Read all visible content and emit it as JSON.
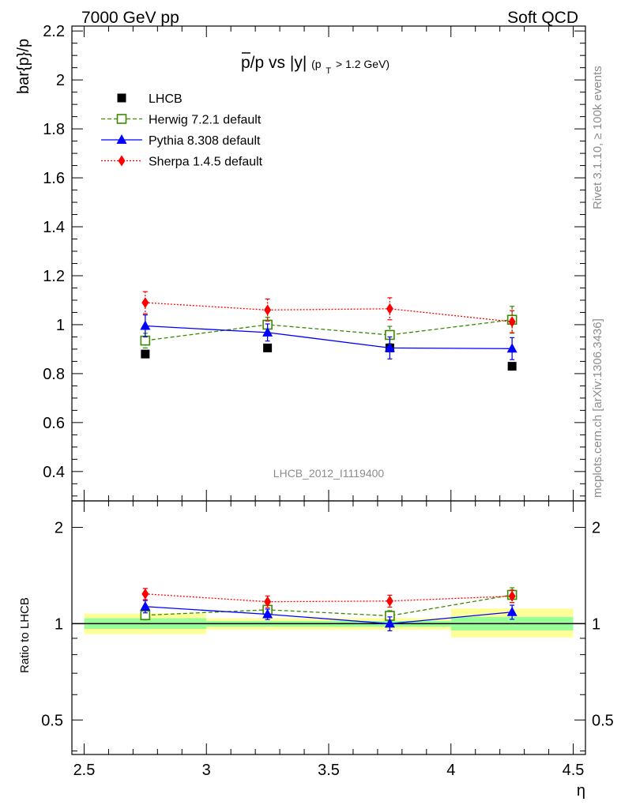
{
  "header": {
    "left": "7000 GeV pp",
    "right": "Soft QCD"
  },
  "side_text": {
    "rivet": "Rivet 3.1.10, ≥ 100k events",
    "mcplots": "mcplots.cern.ch [arXiv:1306.3436]"
  },
  "chart_data": [
    {
      "type": "scatter",
      "panel": "main",
      "title": "p̄/p vs |y| (pT > 1.2 GeV)",
      "title_main": "p/p vs |y|",
      "title_sub": "(p",
      "title_sub_index": "T",
      "title_sub_tail": " > 1.2 GeV)",
      "analysis_id": "LHCB_2012_I1119400",
      "xlabel": "η",
      "ylabel": "bar{p}/p",
      "xlim": [
        2.45,
        4.55
      ],
      "ylim": [
        0.28,
        2.22
      ],
      "yticks": [
        0.4,
        0.6,
        0.8,
        1.0,
        1.2,
        1.4,
        1.6,
        1.8,
        2.0,
        2.2
      ],
      "ytick_labels": [
        "0.4",
        "0.6",
        "0.8",
        "1",
        "1.2",
        "1.4",
        "1.6",
        "1.8",
        "2",
        "2.2"
      ],
      "legend_position": "top-left",
      "series": [
        {
          "name": "LHCB",
          "color": "#000000",
          "marker": "square-filled",
          "line": "none",
          "x": [
            2.75,
            3.25,
            3.75,
            4.25
          ],
          "y": [
            0.88,
            0.905,
            0.905,
            0.83
          ],
          "err": [
            0.01,
            0.01,
            0.01,
            0.01
          ]
        },
        {
          "name": "Herwig 7.2.1 default",
          "color": "#3a8a00",
          "marker": "square-open",
          "line": "dashed",
          "x": [
            2.75,
            3.25,
            3.75,
            4.25
          ],
          "y": [
            0.935,
            1.0,
            0.958,
            1.02
          ],
          "err": [
            0.03,
            0.03,
            0.035,
            0.055
          ]
        },
        {
          "name": "Pythia 8.308 default",
          "color": "#0000ff",
          "marker": "triangle",
          "line": "solid",
          "x": [
            2.75,
            3.25,
            3.75,
            4.25
          ],
          "y": [
            0.995,
            0.968,
            0.905,
            0.902
          ],
          "err": [
            0.045,
            0.035,
            0.045,
            0.045
          ]
        },
        {
          "name": "Sherpa 1.4.5 default",
          "color": "#ff0000",
          "marker": "diamond",
          "line": "dotted",
          "x": [
            2.75,
            3.25,
            3.75,
            4.25
          ],
          "y": [
            1.09,
            1.06,
            1.065,
            1.012
          ],
          "err": [
            0.045,
            0.045,
            0.045,
            0.045
          ]
        }
      ]
    },
    {
      "type": "scatter",
      "panel": "ratio",
      "ylabel": "Ratio to LHCB",
      "yscale": "log",
      "xlim": [
        2.45,
        4.55
      ],
      "ylim": [
        0.39,
        2.42
      ],
      "yticks": [
        0.5,
        1,
        2
      ],
      "ytick_labels": [
        "0.5",
        "1",
        "2"
      ],
      "xticks": [
        2.5,
        3.0,
        3.5,
        4.0,
        4.5
      ],
      "xtick_labels": [
        "2.5",
        "3",
        "3.5",
        "4",
        "4.5"
      ],
      "bands": [
        {
          "x": [
            2.5,
            3.0
          ],
          "yellow": [
            0.927,
            1.075
          ],
          "green": [
            0.963,
            1.04
          ]
        },
        {
          "x": [
            3.0,
            3.5
          ],
          "yellow": [
            0.957,
            1.04
          ],
          "green": [
            0.978,
            1.02
          ]
        },
        {
          "x": [
            3.5,
            4.0
          ],
          "yellow": [
            0.957,
            1.04
          ],
          "green": [
            0.978,
            1.02
          ]
        },
        {
          "x": [
            4.0,
            4.5
          ],
          "yellow": [
            0.905,
            1.115
          ],
          "green": [
            0.953,
            1.05
          ]
        }
      ],
      "band_colors": {
        "yellow": "#ffff99",
        "green": "#99ff99"
      },
      "series": [
        {
          "name": "Herwig 7.2.1 default",
          "x": [
            2.75,
            3.25,
            3.75,
            4.25
          ],
          "y": [
            1.063,
            1.105,
            1.058,
            1.23
          ],
          "err": [
            0.035,
            0.035,
            0.04,
            0.065
          ]
        },
        {
          "name": "Pythia 8.308 default",
          "x": [
            2.75,
            3.25,
            3.75,
            4.25
          ],
          "y": [
            1.131,
            1.07,
            1.0,
            1.087
          ],
          "err": [
            0.05,
            0.04,
            0.05,
            0.055
          ]
        },
        {
          "name": "Sherpa 1.4.5 default",
          "x": [
            2.75,
            3.25,
            3.75,
            4.25
          ],
          "y": [
            1.239,
            1.171,
            1.177,
            1.219
          ],
          "err": [
            0.05,
            0.05,
            0.05,
            0.055
          ]
        }
      ]
    }
  ]
}
